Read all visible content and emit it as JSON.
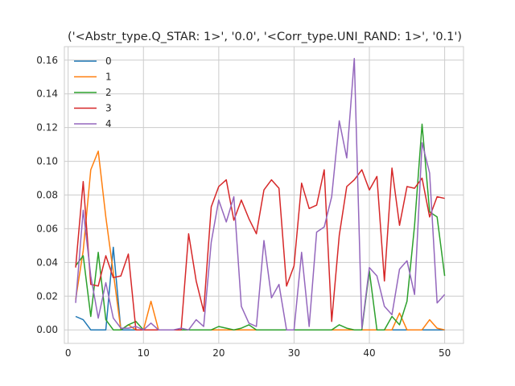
{
  "chart_data": {
    "type": "line",
    "title": "('<Abstr_type.Q_STAR: 1>', '0.0', '<Corr_type.UNI_RAND: 1>', '0.1')",
    "xlabel": "",
    "ylabel": "",
    "xlim": [
      -0.5,
      52.5
    ],
    "ylim": [
      -0.008,
      0.168
    ],
    "xticks": [
      0,
      10,
      20,
      30,
      40,
      50
    ],
    "yticks": [
      0.0,
      0.02,
      0.04,
      0.06,
      0.08,
      0.1,
      0.12,
      0.14,
      0.16
    ],
    "grid": true,
    "legend_position": "top-left",
    "x": [
      1,
      2,
      3,
      4,
      5,
      6,
      7,
      8,
      9,
      10,
      11,
      12,
      13,
      14,
      15,
      16,
      17,
      18,
      19,
      20,
      21,
      22,
      23,
      24,
      25,
      26,
      27,
      28,
      29,
      30,
      31,
      32,
      33,
      34,
      35,
      36,
      37,
      38,
      39,
      40,
      41,
      42,
      43,
      44,
      45,
      46,
      47,
      48,
      49,
      50
    ],
    "series": [
      {
        "name": "0",
        "color": "#1f77b4",
        "values": [
          0.008,
          0.006,
          0.0,
          0.0,
          0.0,
          0.049,
          0.0,
          0.0,
          0.0,
          0.0,
          0.0,
          0.0,
          0.0,
          0.0,
          0.0,
          0.0,
          0.0,
          0.0,
          0.0,
          0.0,
          0.0,
          0.0,
          0.0,
          0.0,
          0.0,
          0.0,
          0.0,
          0.0,
          0.0,
          0.0,
          0.0,
          0.0,
          0.0,
          0.0,
          0.0,
          0.0,
          0.0,
          0.0,
          0.0,
          0.0,
          0.0,
          0.0,
          0.0,
          0.0,
          0.0,
          0.0,
          0.0,
          0.0,
          0.0,
          0.0
        ]
      },
      {
        "name": "1",
        "color": "#ff7f0e",
        "values": [
          0.018,
          0.047,
          0.095,
          0.106,
          0.067,
          0.034,
          0.0,
          0.003,
          0.0,
          0.0,
          0.017,
          0.0,
          0.0,
          0.0,
          0.0,
          0.0,
          0.0,
          0.0,
          0.0,
          0.0,
          0.0,
          0.0,
          0.0,
          0.0,
          0.0,
          0.0,
          0.0,
          0.0,
          0.0,
          0.0,
          0.0,
          0.0,
          0.0,
          0.0,
          0.0,
          0.0,
          0.0,
          0.0,
          0.0,
          0.0,
          0.0,
          0.0,
          0.0,
          0.01,
          0.0,
          0.0,
          0.0,
          0.006,
          0.001,
          0.0
        ]
      },
      {
        "name": "2",
        "color": "#2ca02c",
        "values": [
          0.038,
          0.044,
          0.008,
          0.046,
          0.006,
          0.0,
          0.0,
          0.003,
          0.005,
          0.0,
          0.0,
          0.0,
          0.0,
          0.0,
          0.0,
          0.0,
          0.0,
          0.0,
          0.0,
          0.002,
          0.001,
          0.0,
          0.001,
          0.003,
          0.0,
          0.0,
          0.0,
          0.0,
          0.0,
          0.0,
          0.0,
          0.0,
          0.0,
          0.0,
          0.0,
          0.003,
          0.001,
          0.0,
          0.0,
          0.035,
          0.0,
          0.0,
          0.008,
          0.003,
          0.017,
          0.062,
          0.122,
          0.07,
          0.067,
          0.032
        ]
      },
      {
        "name": "3",
        "color": "#d62728",
        "values": [
          0.037,
          0.088,
          0.027,
          0.026,
          0.044,
          0.031,
          0.032,
          0.045,
          0.0,
          0.0,
          0.0,
          0.0,
          0.0,
          0.0,
          0.0,
          0.057,
          0.029,
          0.011,
          0.073,
          0.085,
          0.089,
          0.065,
          0.077,
          0.066,
          0.057,
          0.083,
          0.089,
          0.084,
          0.026,
          0.038,
          0.087,
          0.072,
          0.074,
          0.095,
          0.005,
          0.056,
          0.085,
          0.089,
          0.095,
          0.083,
          0.091,
          0.029,
          0.096,
          0.062,
          0.085,
          0.084,
          0.09,
          0.067,
          0.079,
          0.078
        ]
      },
      {
        "name": "4",
        "color": "#9467bd",
        "values": [
          0.016,
          0.071,
          0.032,
          0.007,
          0.028,
          0.007,
          0.001,
          0.001,
          0.002,
          0.0,
          0.004,
          0.0,
          0.0,
          0.0,
          0.001,
          0.0,
          0.006,
          0.002,
          0.052,
          0.077,
          0.064,
          0.079,
          0.014,
          0.004,
          0.002,
          0.053,
          0.019,
          0.027,
          0.0,
          0.0,
          0.046,
          0.002,
          0.058,
          0.061,
          0.079,
          0.124,
          0.102,
          0.161,
          0.001,
          0.037,
          0.032,
          0.014,
          0.009,
          0.036,
          0.041,
          0.021,
          0.111,
          0.093,
          0.016,
          0.021
        ]
      }
    ]
  }
}
